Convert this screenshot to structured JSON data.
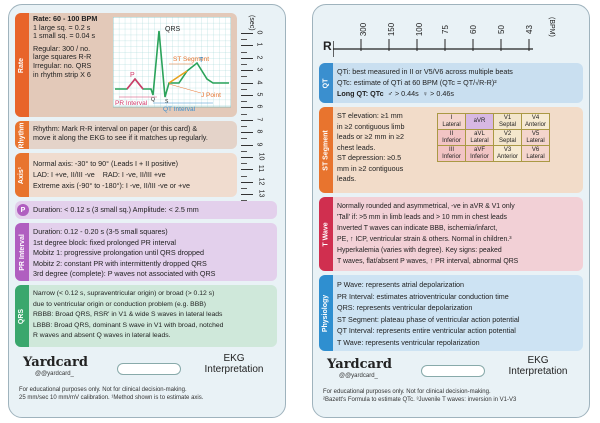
{
  "left": {
    "rate": {
      "tab": "Rate",
      "l1": "Rate: 60 - 100 BPM",
      "l2": "1 large sq. = 0.2 s",
      "l3": "1 small sq. = 0.04 s",
      "l4": "Regular: 300 / no.",
      "l5": "large squares R-R",
      "l6": "Irregular: no. QRS",
      "l7": "in rhythm strip X 6"
    },
    "ekg": {
      "qrs": "QRS",
      "st": "ST Segment",
      "p": "P",
      "t": "T",
      "pr": "PR Interval",
      "qt": "QT Interval",
      "j": "J Point",
      "q": "Q",
      "s": "S"
    },
    "ruler": {
      "unit": "(sec)",
      "ticks": [
        "0",
        "1",
        "2",
        "3",
        "4",
        "5",
        "6",
        "7",
        "8",
        "9",
        "10",
        "11",
        "12",
        "13",
        "14"
      ]
    },
    "rhythm": {
      "tab": "Rhythm",
      "l1": "Rhythm: Mark R-R interval on paper (or this card) &",
      "l2": "move it along the EKG to see if it matches up regularly."
    },
    "axis": {
      "tab": "Axis¹",
      "l1": "Normal axis: -30° to 90° (Leads I + II positive)",
      "l2": "LAD: I +ve, II/III -ve",
      "l2b": "RAD: I -ve, II/III +ve",
      "l3": "Extreme axis (-90° to -180°): I -ve, II/III -ve or +ve"
    },
    "pwave": {
      "tab": "P",
      "l1": "Duration: < 0.12 s (3 small sq.)  Amplitude: < 2.5 mm"
    },
    "pr": {
      "tab": "PR Interval",
      "l1": "Duration: 0.12 - 0.20 s (3-5 small squares)",
      "l2": "1st degree block: fixed prolonged PR interval",
      "l3": "Mobitz 1: progressive prolongation until QRS dropped",
      "l4": "Mobitz 2: constant PR with intermittently dropped QRS",
      "l5": "3rd degree (complete): P waves not associated with QRS"
    },
    "qrs": {
      "tab": "QRS",
      "l1": "Narrow (< 0.12 s, supraventricular origin) or broad (> 0.12 s)",
      "l2": "due to ventricular origin or conduction problem (e.g. BBB)",
      "l3": "RBBB: Broad QRS, RSR' in V1 & wide S waves in lateral leads",
      "l4": "LBBB: Broad QRS, dominant S wave in V1 with broad, notched",
      "l5": "R waves and absent Q waves in lateral leads."
    },
    "brand": {
      "logo": "Yardcard",
      "handle": "@@yardcard_",
      "title1": "EKG",
      "title2": "Interpretation"
    },
    "footer": {
      "l1": "For educational purposes only. Not for clinical decision-making.",
      "l2": "25 mm/sec 10 mm/mV calibration. ¹Method shown is to estimate axis."
    }
  },
  "right": {
    "bpm": {
      "r": "R",
      "values": [
        "300",
        "150",
        "100",
        "75",
        "60",
        "50",
        "43"
      ],
      "unit": "(BPM)"
    },
    "qt": {
      "tab": "QT",
      "l1": "QTi: best measured in II or V5/V6 across multiple beats",
      "l2": "QTc: estimate of QTi at 60 BPM (QTc = QT/√R-R)²",
      "l3": "Long QT: QTc",
      "l3a": "> 0.44s",
      "l3b": "> 0.46s"
    },
    "st": {
      "tab": "ST Segment",
      "l1": "ST elevation: ≥1 mm",
      "l2": "in ≥2 contiguous limb",
      "l3": "leads or ≥2 mm in ≥2",
      "l4": "chest leads.",
      "l5": "ST depression: ≥0.5",
      "l6": "mm in ≥2 contiguous",
      "l7": "leads.",
      "leads": [
        [
          "I",
          "Lateral"
        ],
        [
          "aVR",
          ""
        ],
        [
          "V1",
          "Septal"
        ],
        [
          "V4",
          "Anterior"
        ],
        [
          "II",
          "Inferior"
        ],
        [
          "aVL",
          "Lateral"
        ],
        [
          "V2",
          "Septal"
        ],
        [
          "V5",
          "Lateral"
        ],
        [
          "III",
          "Inferior"
        ],
        [
          "aVF",
          "Inferior"
        ],
        [
          "V3",
          "Anterior"
        ],
        [
          "V6",
          "Lateral"
        ]
      ]
    },
    "twave": {
      "tab": "T Wave",
      "l1": "Normally rounded and asymmetrical, -ve in aVR & V1 only",
      "l2": "'Tall' if: >5 mm in limb leads and > 10 mm in chest leads",
      "l3": "Inverted T waves can indicate BBB, ischemia/infarct,",
      "l4": "PE, ↑ ICP, ventricular strain & others. Normal in children.³",
      "l5": "Hyperkalemia (varies with degree). Key signs: peaked",
      "l6": "T waves, flat/absent P waves, ↑ PR interval, abnormal QRS"
    },
    "phys": {
      "tab": "Physiology",
      "l1": "P Wave: represents atrial depolarization",
      "l2": "PR Interval: estimates atrioventricular conduction time",
      "l3": "QRS: represents ventricular depolarization",
      "l4": "ST Segment: plateau phase of ventricular action potential",
      "l5": "QT Interval: represents entire ventricular action potential",
      "l6": "T Wave: represents ventricular repolarization"
    },
    "brand": {
      "logo": "Yardcard",
      "handle": "@@yardcard_",
      "title1": "EKG",
      "title2": "Interpretation"
    },
    "footer": {
      "l1": "For educational purposes only. Not for clinical decision-making.",
      "l2": "²Bazett's Formula to estimate QTc. ³Juvenile T waves: inversion in V1-V3"
    }
  },
  "colors": {
    "rate": "#e8642a",
    "rhythm": "#e8742e",
    "axis": "#e8742e",
    "p": "#b05fc0",
    "pr": "#b05fc0",
    "qrs": "#3aa76d",
    "qt": "#3a8fcf",
    "st": "#e8742e",
    "twave": "#d02f4f",
    "phys": "#2f8fd0"
  }
}
